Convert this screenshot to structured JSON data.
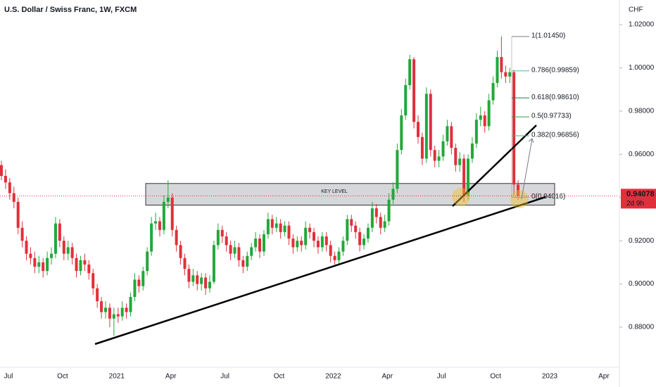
{
  "chart_data": {
    "type": "candlestick",
    "title": "U.S. Dollar / Swiss Franc, 1W, FXCM",
    "currency": "CHF",
    "up_color": "#22a83a",
    "down_color": "#e0303b",
    "grid": false,
    "ylim": [
      0.8621,
      1.0314
    ],
    "yticks": [
      {
        "value": 0.88,
        "label": "0.88000"
      },
      {
        "value": 0.9,
        "label": "0.90000"
      },
      {
        "value": 0.92,
        "label": "0.92000"
      },
      {
        "value": 0.94,
        "label": "0.94000"
      },
      {
        "value": 0.96,
        "label": "0.96000"
      },
      {
        "value": 0.98,
        "label": "0.98000"
      },
      {
        "value": 1.0,
        "label": "1.00000"
      },
      {
        "value": 1.02,
        "label": "1.02000"
      }
    ],
    "xtick_labels": [
      "Jul",
      "Oct",
      "2021",
      "Apr",
      "Jul",
      "Oct",
      "2022",
      "Apr",
      "Jul",
      "Oct",
      "2023",
      "Apr"
    ],
    "last_price": 0.94078,
    "countdown": "2d 9h",
    "key_level": {
      "label": "KEY LEVEL",
      "top": 0.9465,
      "bottom": 0.9365
    },
    "fib_levels": [
      {
        "label": "1(1.01450)",
        "value": 1.0145,
        "color": "#787b86"
      },
      {
        "label": "0.786(0.99859)",
        "value": 0.99859,
        "color": "#5fb3a4"
      },
      {
        "label": "0.618(0.98610)",
        "value": 0.9861,
        "color": "#1b7a45"
      },
      {
        "label": "0.5(0.97733)",
        "value": 0.97733,
        "color": "#2e9e3e"
      },
      {
        "label": "0.382(0.96856)",
        "value": 0.96856,
        "color": "#4caf7a"
      },
      {
        "label": "0(0.94016)",
        "value": 0.94016,
        "color": "#9a9aa0"
      }
    ],
    "open": [
      0.955,
      0.95,
      0.947,
      0.942,
      0.938,
      0.926,
      0.92,
      0.914,
      0.912,
      0.908,
      0.91,
      0.906,
      0.912,
      0.914,
      0.928,
      0.92,
      0.914,
      0.917,
      0.912,
      0.906,
      0.911,
      0.909,
      0.905,
      0.898,
      0.892,
      0.887,
      0.889,
      0.884,
      0.886,
      0.885,
      0.889,
      0.887,
      0.894,
      0.902,
      0.899,
      0.906,
      0.915,
      0.928,
      0.929,
      0.925,
      0.938,
      0.94,
      0.925,
      0.918,
      0.912,
      0.907,
      0.901,
      0.904,
      0.9,
      0.903,
      0.898,
      0.901,
      0.918,
      0.925,
      0.922,
      0.918,
      0.914,
      0.917,
      0.911,
      0.908,
      0.913,
      0.917,
      0.921,
      0.915,
      0.923,
      0.93,
      0.926,
      0.928,
      0.924,
      0.927,
      0.921,
      0.917,
      0.92,
      0.918,
      0.926,
      0.924,
      0.92,
      0.917,
      0.922,
      0.918,
      0.913,
      0.911,
      0.915,
      0.92,
      0.93,
      0.927,
      0.924,
      0.918,
      0.921,
      0.926,
      0.935,
      0.931,
      0.926,
      0.929,
      0.939,
      0.944,
      0.962,
      0.978,
      0.992,
      1.004,
      0.975,
      0.968,
      0.958,
      0.988,
      0.962,
      0.957,
      0.959,
      0.966,
      0.973,
      0.963,
      0.955,
      0.958,
      0.941,
      0.958,
      0.965,
      0.976,
      0.978,
      0.973,
      0.985,
      0.993,
      1.005,
      0.998,
      0.996,
      0.998,
      0.946
    ],
    "high": [
      0.957,
      0.953,
      0.949,
      0.945,
      0.94,
      0.929,
      0.922,
      0.917,
      0.915,
      0.913,
      0.912,
      0.915,
      0.917,
      0.931,
      0.93,
      0.922,
      0.92,
      0.919,
      0.914,
      0.913,
      0.914,
      0.911,
      0.907,
      0.9,
      0.894,
      0.892,
      0.891,
      0.889,
      0.889,
      0.892,
      0.891,
      0.896,
      0.905,
      0.904,
      0.908,
      0.917,
      0.931,
      0.933,
      0.931,
      0.941,
      0.948,
      0.942,
      0.927,
      0.92,
      0.914,
      0.909,
      0.907,
      0.906,
      0.905,
      0.905,
      0.904,
      0.92,
      0.928,
      0.927,
      0.924,
      0.92,
      0.92,
      0.919,
      0.913,
      0.915,
      0.919,
      0.924,
      0.923,
      0.925,
      0.933,
      0.932,
      0.931,
      0.93,
      0.929,
      0.929,
      0.923,
      0.922,
      0.922,
      0.929,
      0.928,
      0.926,
      0.922,
      0.924,
      0.924,
      0.92,
      0.915,
      0.917,
      0.922,
      0.932,
      0.932,
      0.929,
      0.926,
      0.923,
      0.928,
      0.938,
      0.937,
      0.933,
      0.932,
      0.942,
      0.947,
      0.965,
      0.981,
      0.995,
      1.006,
      1.005,
      0.978,
      0.97,
      0.991,
      0.99,
      0.964,
      0.962,
      0.969,
      0.976,
      0.975,
      0.965,
      0.961,
      0.96,
      0.96,
      0.968,
      0.979,
      0.982,
      0.98,
      0.988,
      0.996,
      1.008,
      1.0145,
      1.001,
      1.0,
      0.999,
      0.948
    ],
    "low": [
      0.948,
      0.944,
      0.939,
      0.935,
      0.923,
      0.917,
      0.911,
      0.909,
      0.905,
      0.905,
      0.903,
      0.904,
      0.909,
      0.912,
      0.917,
      0.911,
      0.911,
      0.909,
      0.903,
      0.904,
      0.906,
      0.902,
      0.895,
      0.889,
      0.884,
      0.884,
      0.88,
      0.876,
      0.882,
      0.883,
      0.884,
      0.885,
      0.892,
      0.896,
      0.897,
      0.904,
      0.913,
      0.925,
      0.922,
      0.923,
      0.935,
      0.922,
      0.915,
      0.909,
      0.904,
      0.898,
      0.899,
      0.897,
      0.897,
      0.895,
      0.896,
      0.9,
      0.916,
      0.919,
      0.915,
      0.911,
      0.912,
      0.908,
      0.905,
      0.906,
      0.911,
      0.915,
      0.912,
      0.913,
      0.921,
      0.923,
      0.924,
      0.921,
      0.922,
      0.918,
      0.914,
      0.915,
      0.915,
      0.916,
      0.921,
      0.917,
      0.914,
      0.915,
      0.915,
      0.91,
      0.909,
      0.909,
      0.913,
      0.918,
      0.924,
      0.921,
      0.915,
      0.916,
      0.919,
      0.924,
      0.928,
      0.923,
      0.924,
      0.927,
      0.937,
      0.942,
      0.96,
      0.976,
      0.99,
      0.972,
      0.965,
      0.955,
      0.956,
      0.959,
      0.954,
      0.954,
      0.957,
      0.964,
      0.96,
      0.952,
      0.952,
      0.938,
      0.939,
      0.956,
      0.963,
      0.973,
      0.97,
      0.971,
      0.983,
      0.991,
      0.995,
      0.993,
      0.993,
      0.941,
      0.939
    ],
    "close": [
      0.95,
      0.947,
      0.942,
      0.938,
      0.926,
      0.92,
      0.914,
      0.912,
      0.908,
      0.91,
      0.906,
      0.912,
      0.914,
      0.928,
      0.92,
      0.914,
      0.917,
      0.912,
      0.906,
      0.911,
      0.909,
      0.905,
      0.898,
      0.892,
      0.887,
      0.889,
      0.884,
      0.886,
      0.885,
      0.889,
      0.887,
      0.894,
      0.902,
      0.899,
      0.906,
      0.915,
      0.928,
      0.929,
      0.925,
      0.938,
      0.94,
      0.925,
      0.918,
      0.912,
      0.907,
      0.901,
      0.904,
      0.9,
      0.903,
      0.898,
      0.901,
      0.918,
      0.925,
      0.922,
      0.918,
      0.914,
      0.917,
      0.911,
      0.908,
      0.913,
      0.917,
      0.921,
      0.915,
      0.923,
      0.93,
      0.926,
      0.928,
      0.924,
      0.927,
      0.921,
      0.917,
      0.92,
      0.918,
      0.926,
      0.924,
      0.92,
      0.917,
      0.922,
      0.918,
      0.913,
      0.911,
      0.915,
      0.92,
      0.93,
      0.927,
      0.924,
      0.918,
      0.921,
      0.926,
      0.935,
      0.931,
      0.926,
      0.929,
      0.939,
      0.944,
      0.962,
      0.978,
      0.992,
      1.004,
      0.975,
      0.968,
      0.958,
      0.988,
      0.962,
      0.957,
      0.959,
      0.966,
      0.973,
      0.963,
      0.955,
      0.958,
      0.941,
      0.958,
      0.965,
      0.976,
      0.978,
      0.973,
      0.985,
      0.993,
      1.005,
      0.998,
      0.996,
      0.998,
      0.946,
      0.94078
    ]
  }
}
